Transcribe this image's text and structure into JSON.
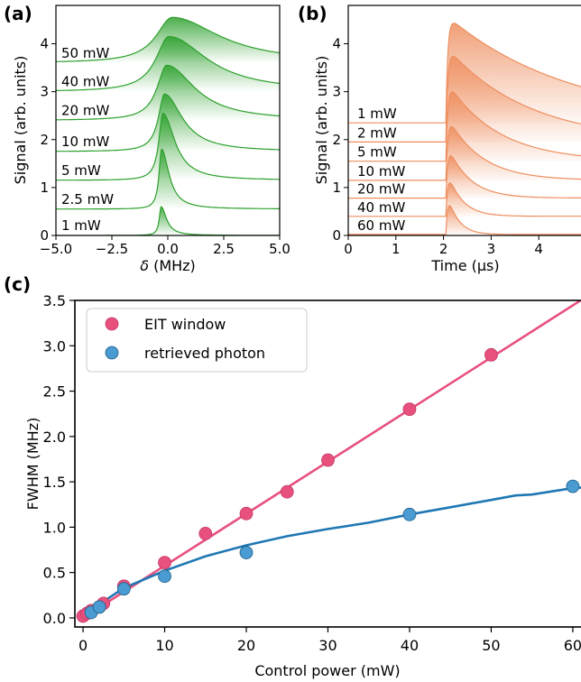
{
  "panels": {
    "a": "(a)",
    "b": "(b)",
    "c": "(c)"
  },
  "colors": {
    "green": "#2ca02c",
    "orange": "#ee8e5e",
    "pink": "#e8507e",
    "blue": "#1f77b4"
  },
  "chart_data": [
    {
      "type": "line",
      "panel": "(a)",
      "xlabel_prefix": "δ",
      "xlabel_unit": " (MHz)",
      "ylabel": "Signal (arb. units)",
      "xlim": [
        -5.0,
        5.0
      ],
      "ylim": [
        0,
        4.8
      ],
      "xticks": [
        "−5.0",
        "−2.5",
        "0.0",
        "2.5",
        "5.0"
      ],
      "yticks": [
        "0",
        "1",
        "2",
        "3",
        "4"
      ],
      "series": [
        {
          "name": "1 mW",
          "offset": 0.0,
          "peak_x": -0.3,
          "amp": 0.6,
          "width": 0.18
        },
        {
          "name": "2.5 mW",
          "offset": 0.55,
          "peak_x": -0.28,
          "amp": 1.25,
          "width": 0.25
        },
        {
          "name": "5 mW",
          "offset": 1.15,
          "peak_x": -0.22,
          "amp": 1.4,
          "width": 0.4
        },
        {
          "name": "10 mW",
          "offset": 1.75,
          "peak_x": -0.15,
          "amp": 1.2,
          "width": 0.6
        },
        {
          "name": "20 mW",
          "offset": 2.4,
          "peak_x": -0.05,
          "amp": 1.15,
          "width": 0.95
        },
        {
          "name": "40 mW",
          "offset": 3.0,
          "peak_x": 0.05,
          "amp": 1.15,
          "width": 1.3
        },
        {
          "name": "50 mW",
          "offset": 3.6,
          "peak_x": 0.2,
          "amp": 0.95,
          "width": 1.6
        }
      ]
    },
    {
      "type": "line",
      "panel": "(b)",
      "xlabel_prefix": "Time (",
      "xlabel_unit": "μs)",
      "ylabel": "Signal (arb. units)",
      "xlim": [
        0,
        5
      ],
      "ylim": [
        0,
        4.8
      ],
      "xticks": [
        "0",
        "1",
        "2",
        "3",
        "4",
        "5"
      ],
      "yticks": [
        "0",
        "1",
        "2",
        "3",
        "4"
      ],
      "series": [
        {
          "name": "1 mW",
          "offset": 2.35,
          "t0": 2.05,
          "amp": 2.25,
          "decay": 2.6
        },
        {
          "name": "2 mW",
          "offset": 1.95,
          "t0": 2.05,
          "amp": 2.0,
          "decay": 1.7
        },
        {
          "name": "5 mW",
          "offset": 1.55,
          "t0": 2.05,
          "amp": 1.7,
          "decay": 1.05
        },
        {
          "name": "10 mW",
          "offset": 1.15,
          "t0": 2.05,
          "amp": 1.4,
          "decay": 0.7
        },
        {
          "name": "20 mW",
          "offset": 0.78,
          "t0": 2.05,
          "amp": 1.2,
          "decay": 0.45
        },
        {
          "name": "40 mW",
          "offset": 0.4,
          "t0": 2.05,
          "amp": 1.05,
          "decay": 0.3
        },
        {
          "name": "60 mW",
          "offset": 0.02,
          "t0": 2.05,
          "amp": 1.0,
          "decay": 0.22
        }
      ]
    },
    {
      "type": "scatter",
      "panel": "(c)",
      "xlabel": "Control power (mW)",
      "ylabel": "FWHM (MHz)",
      "xlim": [
        -1,
        62
      ],
      "ylim": [
        -0.1,
        3.5
      ],
      "xticks": [
        0,
        10,
        20,
        30,
        40,
        50,
        60
      ],
      "yticks": [
        0.0,
        0.5,
        1.0,
        1.5,
        2.0,
        2.5,
        3.0,
        3.5
      ],
      "legend_position": "top-left",
      "series": [
        {
          "name": "EIT window",
          "color": "#e8507e",
          "points": [
            [
              0,
              0.02
            ],
            [
              0.5,
              0.05
            ],
            [
              1,
              0.08
            ],
            [
              2,
              0.12
            ],
            [
              2.5,
              0.16
            ],
            [
              5,
              0.35
            ],
            [
              10,
              0.61
            ],
            [
              15,
              0.93
            ],
            [
              20,
              1.15
            ],
            [
              25,
              1.39
            ],
            [
              30,
              1.74
            ],
            [
              40,
              2.3
            ],
            [
              50,
              2.9
            ]
          ],
          "fit": [
            [
              0,
              0.0
            ],
            [
              62,
              3.56
            ]
          ]
        },
        {
          "name": "retrieved photon",
          "color": "#1f77b4",
          "points": [
            [
              1,
              0.06
            ],
            [
              2,
              0.12
            ],
            [
              5,
              0.32
            ],
            [
              10,
              0.46
            ],
            [
              20,
              0.72
            ],
            [
              40,
              1.14
            ],
            [
              60,
              1.45
            ]
          ],
          "fit": [
            [
              0,
              0.0
            ],
            [
              2,
              0.15
            ],
            [
              5,
              0.33
            ],
            [
              10,
              0.52
            ],
            [
              15,
              0.68
            ],
            [
              20,
              0.8
            ],
            [
              25,
              0.9
            ],
            [
              30,
              0.98
            ],
            [
              35,
              1.05
            ],
            [
              40,
              1.14
            ],
            [
              45,
              1.22
            ],
            [
              50,
              1.3
            ],
            [
              53,
              1.35
            ],
            [
              55,
              1.36
            ],
            [
              60,
              1.43
            ],
            [
              62,
              1.44
            ]
          ]
        }
      ]
    }
  ]
}
